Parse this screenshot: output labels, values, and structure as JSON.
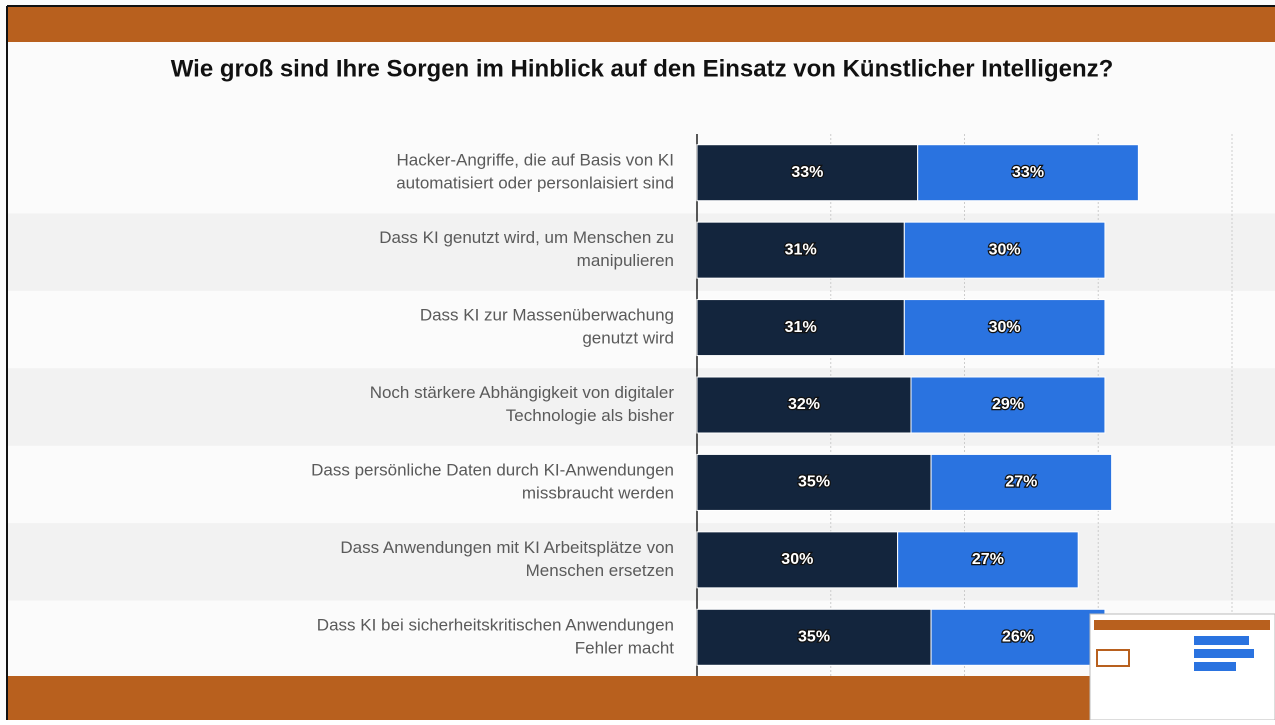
{
  "chart_data": {
    "type": "stacked_barh",
    "title": "Wie groß sind Ihre Sorgen im Hinblick auf den Einsatz von Künstlicher Intelligenz?",
    "categories": [
      [
        "Hacker-Angriffe, die auf Basis von KI",
        "automatisiert oder personlaisiert sind"
      ],
      [
        "Dass KI genutzt wird, um Menschen zu",
        "manipulieren"
      ],
      [
        "Dass KI zur Massenüberwachung",
        "genutzt wird"
      ],
      [
        "Noch stärkere Abhängigkeit von digitaler",
        "Technologie als bisher"
      ],
      [
        "Dass persönliche Daten durch KI-Anwendungen",
        "missbraucht werden"
      ],
      [
        "Dass Anwendungen mit KI Arbeitsplätze von",
        "Menschen ersetzen"
      ],
      [
        "Dass KI bei sicherheitskritischen Anwendungen",
        "Fehler macht"
      ]
    ],
    "series": [
      {
        "color": "#13253d",
        "values": [
          33,
          31,
          31,
          32,
          35,
          30,
          35
        ],
        "value_labels": [
          "33%",
          "31%",
          "31%",
          "32%",
          "35%",
          "30%",
          "35%"
        ]
      },
      {
        "color": "#2a73e0",
        "values": [
          33,
          30,
          30,
          29,
          27,
          27,
          26
        ],
        "value_labels": [
          "33%",
          "30%",
          "30%",
          "29%",
          "27%",
          "27%",
          "26%"
        ]
      }
    ],
    "xlim": [
      0,
      80
    ],
    "xticks": [
      0,
      20,
      40,
      60,
      80
    ],
    "grid": true
  }
}
